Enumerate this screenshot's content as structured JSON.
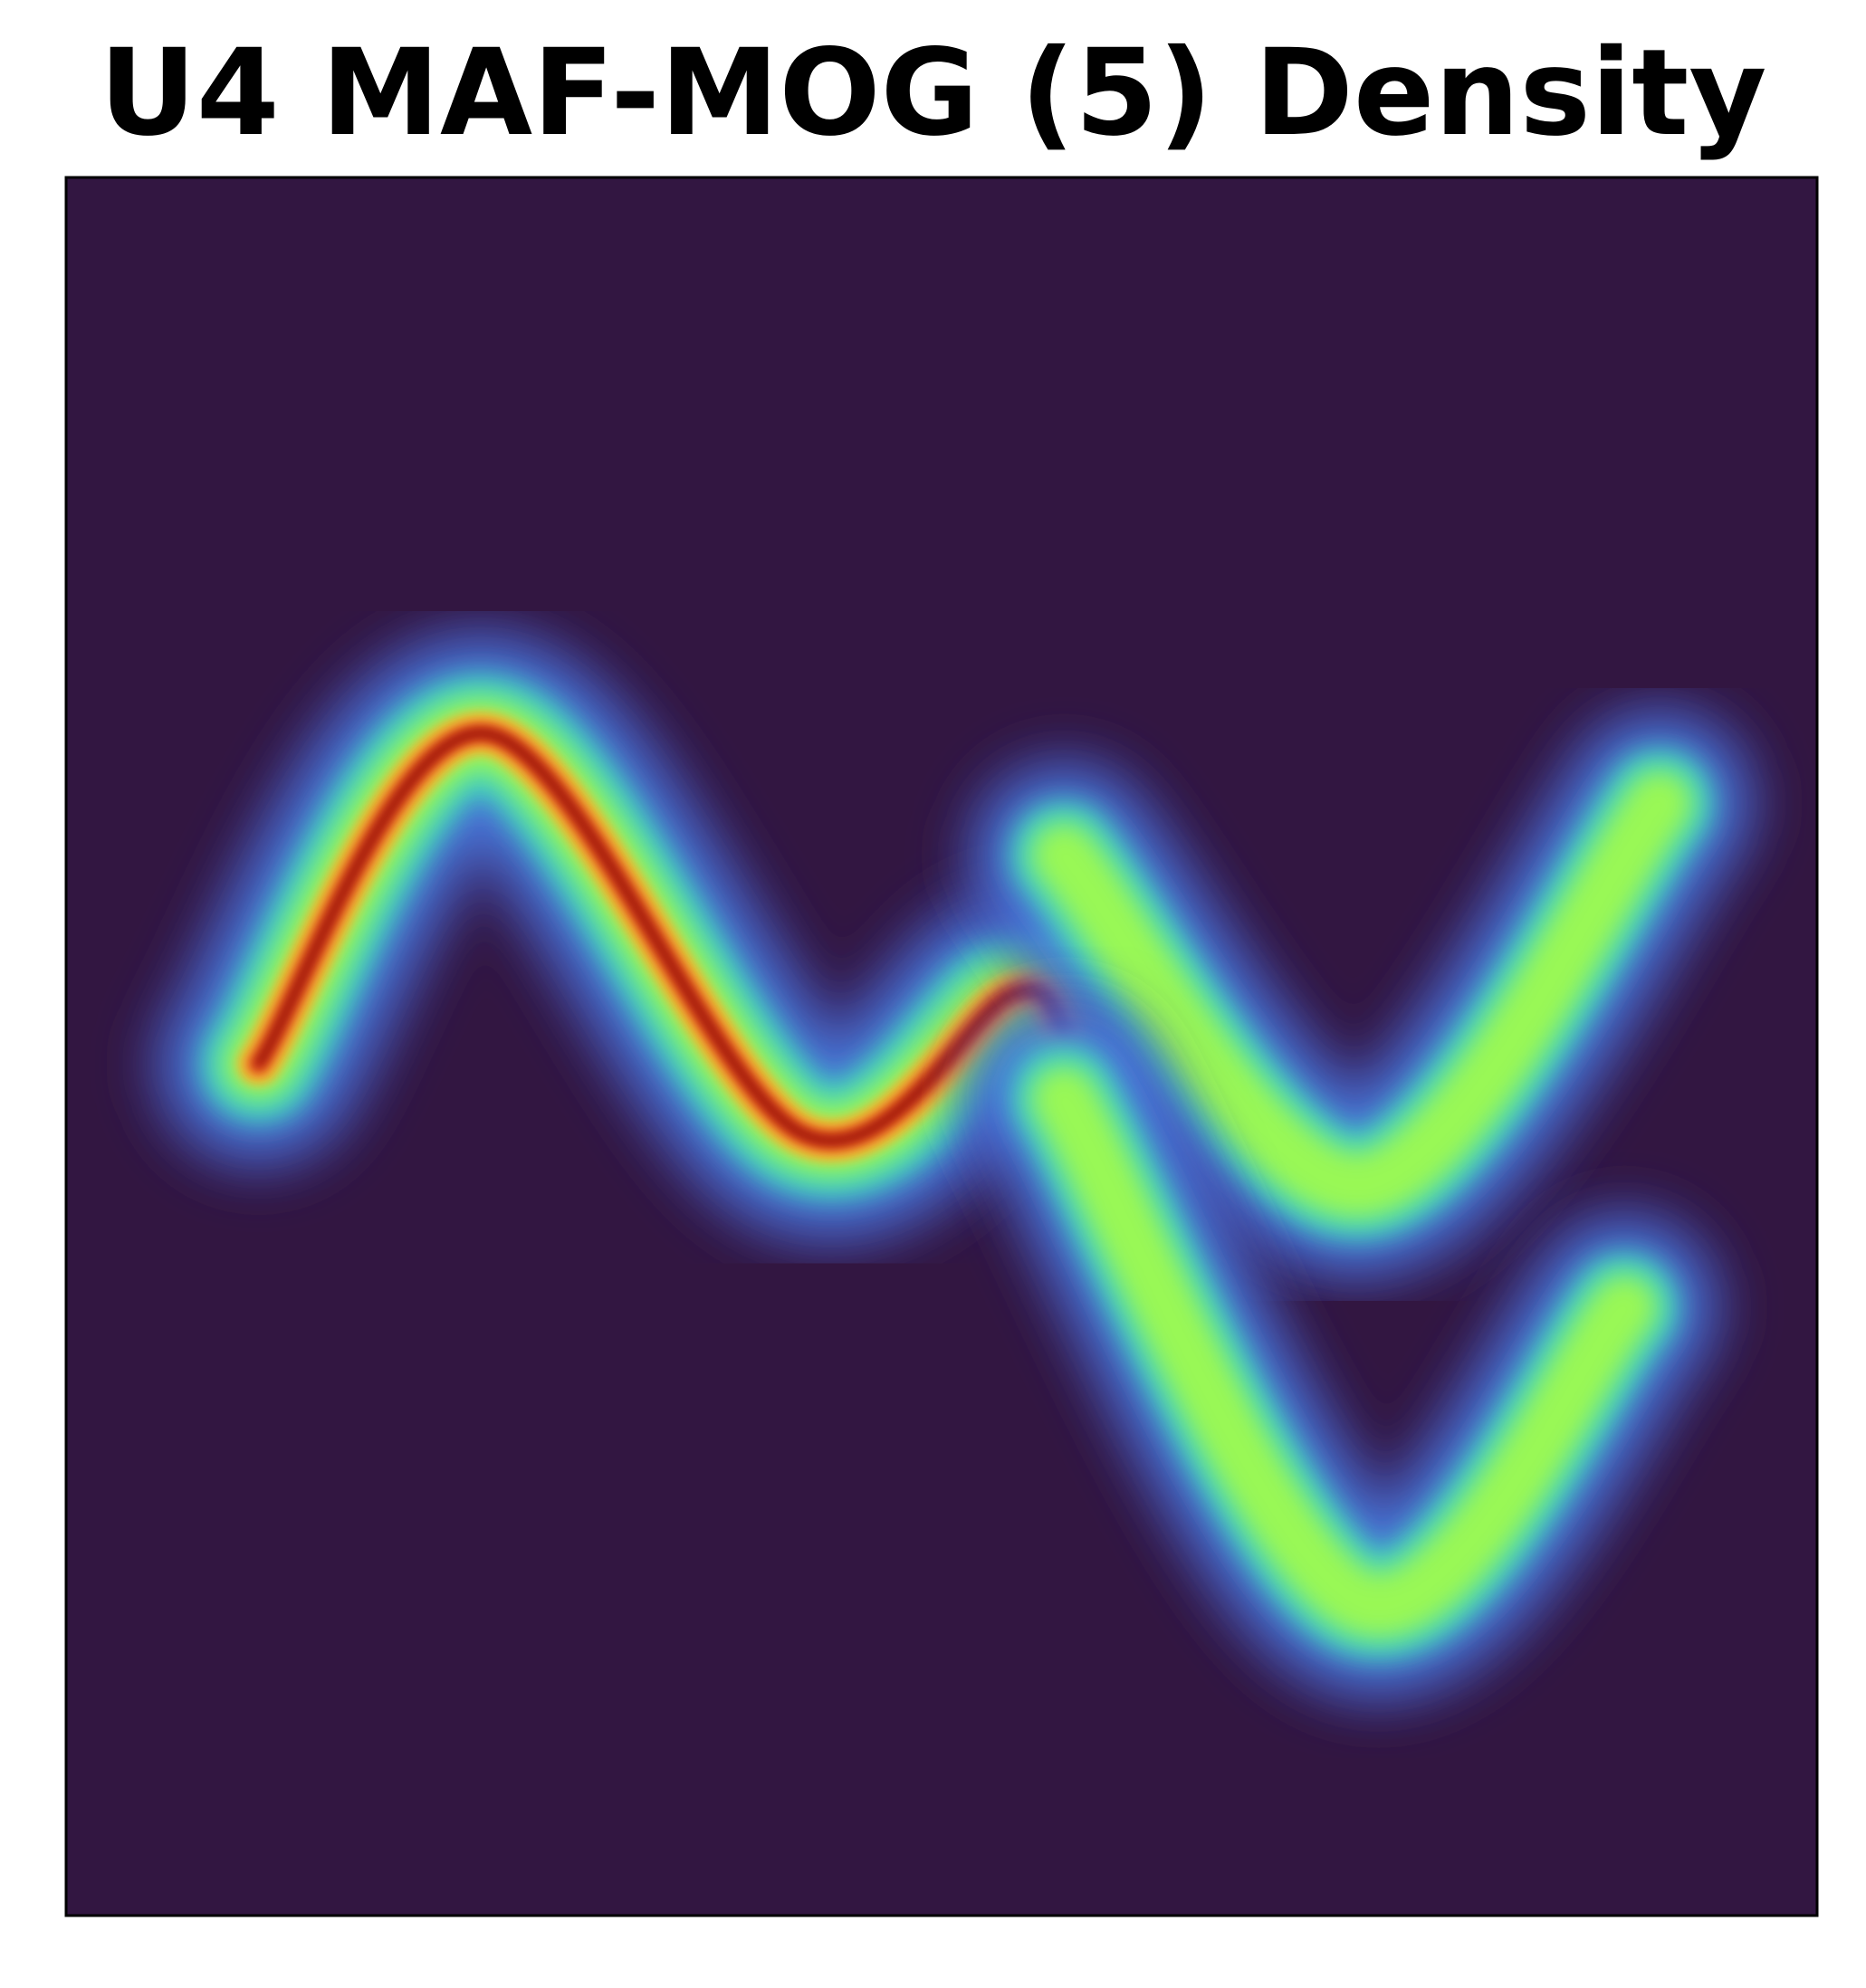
{
  "chart_data": {
    "type": "heatmap",
    "title": "U4 MAF-MOG (5) Density",
    "xlabel": "",
    "ylabel": "",
    "ticks_visible": false,
    "grid": false,
    "legend": "none",
    "colormap": "turbo",
    "background_color": "#321641",
    "frame_color": "#000000",
    "colormap_stops": [
      "#321641",
      "#3f3f9c",
      "#4a7fe8",
      "#3fd6c0",
      "#9efa4f",
      "#f5b430",
      "#e8451f",
      "#7a0403"
    ],
    "density_ridges": [
      {
        "name": "",
        "peak_level": 1.0,
        "description_points": [
          [
            0.11,
            0.49
          ],
          [
            0.24,
            0.68
          ],
          [
            0.42,
            0.45
          ],
          [
            0.54,
            0.53
          ],
          [
            0.57,
            0.51
          ]
        ]
      },
      {
        "name": "",
        "peak_level": 0.55,
        "description_points": [
          [
            0.57,
            0.61
          ],
          [
            0.74,
            0.42
          ],
          [
            0.91,
            0.64
          ]
        ]
      },
      {
        "name": "",
        "peak_level": 0.55,
        "description_points": [
          [
            0.57,
            0.47
          ],
          [
            0.74,
            0.18
          ],
          [
            0.89,
            0.35
          ]
        ]
      }
    ]
  }
}
